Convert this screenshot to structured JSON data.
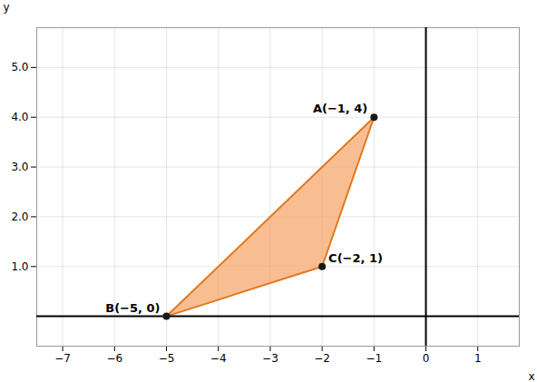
{
  "chart_data": {
    "type": "polygon",
    "xlabel": "x",
    "ylabel": "y",
    "x": [
      -1,
      -5,
      -2
    ],
    "y": [
      4,
      0,
      1
    ],
    "labels": [
      "A(−1, 4)",
      "B(−5, 0)",
      "C(−2, 1)"
    ],
    "color": "#f5a86e",
    "xlim": [
      -7.5,
      1.8
    ],
    "ylim": [
      -0.6,
      5.8
    ],
    "xticks": [
      -7,
      -6,
      -5,
      -4,
      -3,
      -2,
      -1,
      0,
      1
    ],
    "yticks": [
      1,
      2,
      3,
      4,
      5
    ],
    "grid": true
  }
}
